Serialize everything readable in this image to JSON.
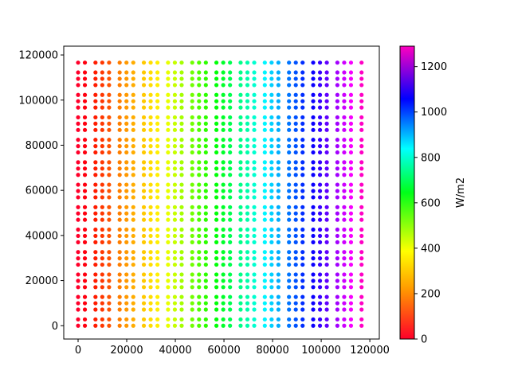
{
  "chart_data": {
    "type": "scatter",
    "title": "",
    "xlabel": "",
    "ylabel": "",
    "xlim": [
      -5900,
      123900
    ],
    "ylim": [
      -5900,
      123900
    ],
    "x_ticks": [
      0,
      20000,
      40000,
      60000,
      80000,
      100000,
      120000
    ],
    "x_tick_labels": [
      "0",
      "20000",
      "40000",
      "60000",
      "80000",
      "100000",
      "120000"
    ],
    "y_ticks": [
      0,
      20000,
      40000,
      60000,
      80000,
      100000,
      120000
    ],
    "y_tick_labels": [
      "0",
      "20000",
      "40000",
      "60000",
      "80000",
      "100000",
      "120000"
    ],
    "grid": false,
    "point_grid": {
      "x_values": [
        0,
        2800,
        7150,
        9950,
        12750,
        17100,
        19900,
        22700,
        27050,
        29850,
        32650,
        37000,
        39800,
        42600,
        46950,
        49750,
        52550,
        56900,
        59700,
        62500,
        66850,
        69650,
        72450,
        76800,
        79600,
        82400,
        86750,
        89550,
        92350,
        96700,
        99500,
        102300,
        106650,
        109450,
        112250,
        116600
      ],
      "y_values": [
        0,
        2800,
        7150,
        9950,
        12750,
        17100,
        19900,
        22700,
        27050,
        29850,
        32650,
        37000,
        39800,
        42600,
        46950,
        49750,
        52550,
        56900,
        59700,
        62500,
        66850,
        69650,
        72450,
        76800,
        79600,
        82400,
        86750,
        89550,
        92350,
        96700,
        99500,
        102300,
        106650,
        109450,
        112250,
        116600
      ],
      "color_value_rule": "value = x * 0.01103 (W/m2)"
    },
    "colorbar": {
      "label": "W/m2",
      "colormap": "gist_rainbow",
      "range": [
        0,
        1290
      ],
      "ticks": [
        0,
        200,
        400,
        600,
        800,
        1000,
        1200
      ],
      "tick_labels": [
        "0",
        "200",
        "400",
        "600",
        "800",
        "1000",
        "1200"
      ]
    }
  }
}
